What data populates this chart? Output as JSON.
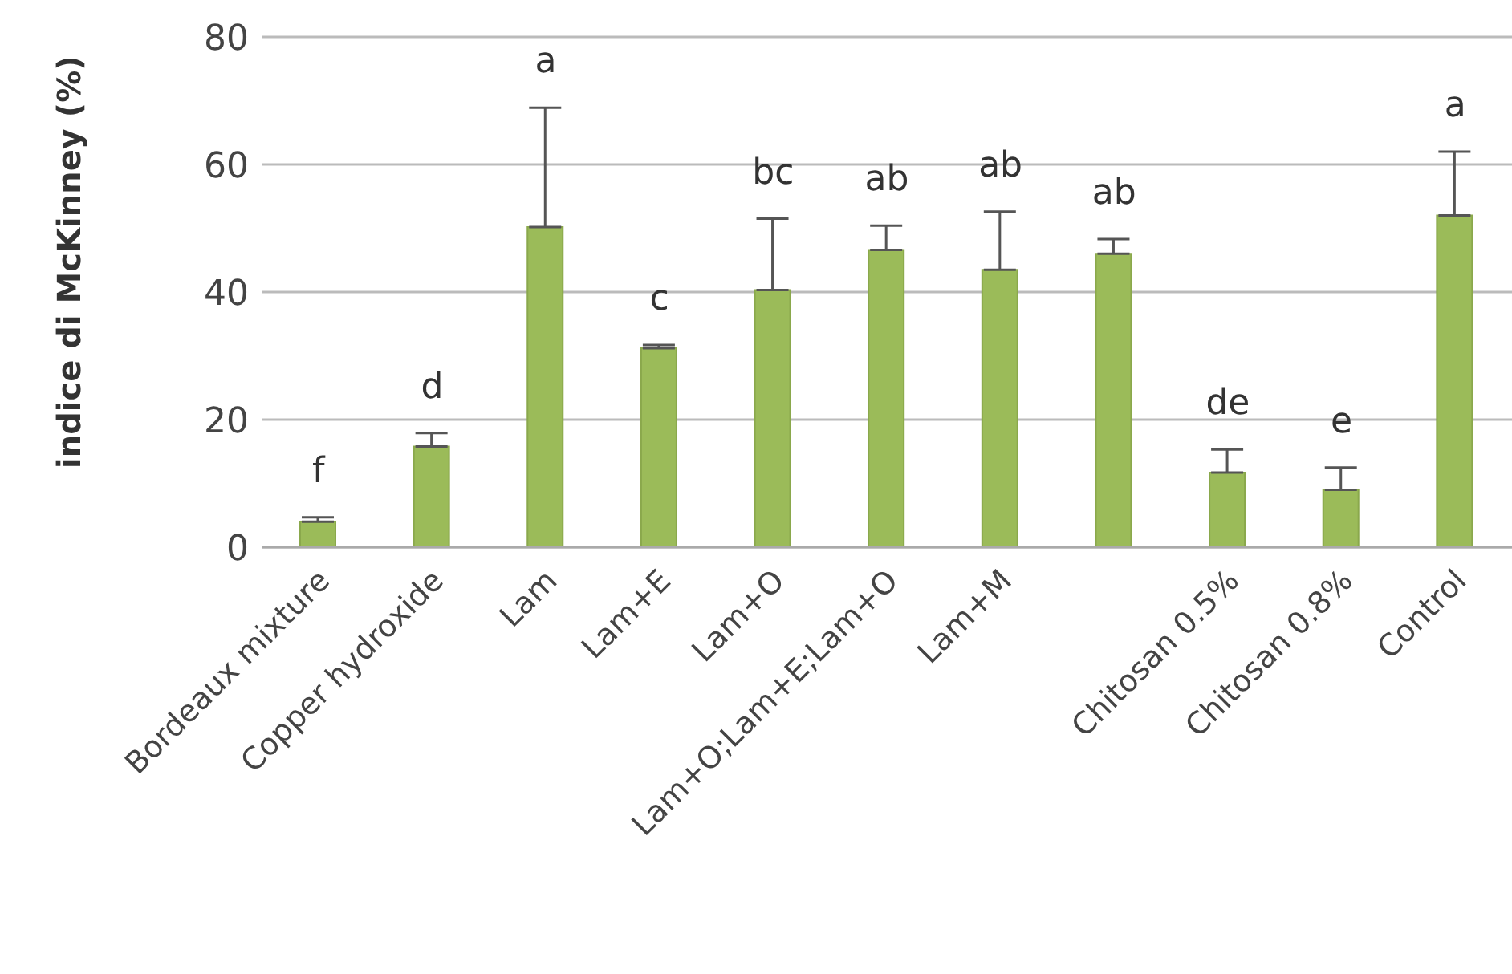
{
  "chart_data": {
    "type": "bar",
    "ylabel": "indice di McKinney (%)",
    "categories": [
      "Bordeaux mixture",
      "Copper hydroxide",
      "Lam",
      "Lam+E",
      "Lam+O",
      "Lam+O;Lam+E;Lam+O",
      "Lam+M",
      null,
      "Chitosan 0.5%",
      "Chitosan 0.8%",
      "Control"
    ],
    "values": [
      4.0,
      15.8,
      50.2,
      31.2,
      40.3,
      46.6,
      43.5,
      46.0,
      11.7,
      9.0,
      52.0
    ],
    "errors": [
      [
        4.0,
        4.7
      ],
      [
        15.8,
        17.9
      ],
      [
        50.2,
        68.9
      ],
      [
        31.2,
        31.7
      ],
      [
        40.3,
        51.5
      ],
      [
        46.6,
        50.4
      ],
      [
        43.5,
        52.6
      ],
      [
        46.0,
        48.3
      ],
      [
        11.7,
        15.3
      ],
      [
        9.0,
        12.5
      ],
      [
        52.0,
        62.0
      ]
    ],
    "color": "#9bbb59",
    "ylim": [
      0,
      80
    ],
    "yticks": [
      0,
      20,
      40,
      60,
      80
    ],
    "grid": "y",
    "legend": false,
    "annotations": [
      "f",
      "d",
      "a",
      "c",
      "bc",
      "ab",
      "ab",
      "ab",
      "de",
      "e",
      "a"
    ]
  }
}
